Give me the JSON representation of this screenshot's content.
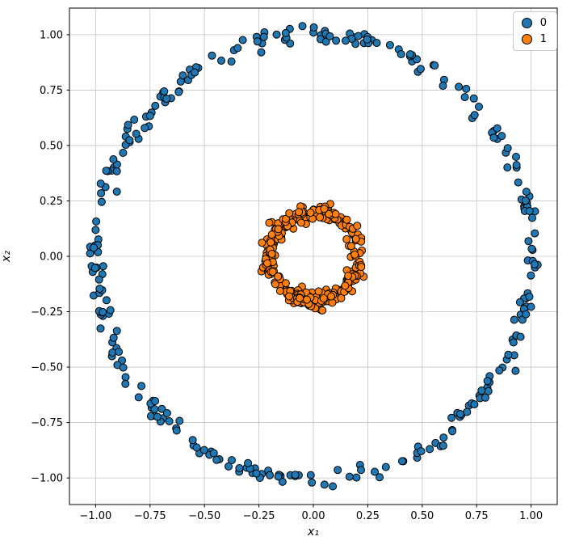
{
  "chart_data": {
    "type": "scatter",
    "title": "",
    "xlabel": "x₁",
    "ylabel": "x₂",
    "xlim": [
      -1.12,
      1.12
    ],
    "ylim": [
      -1.12,
      1.12
    ],
    "grid": true,
    "grid_color": "#c3c3c3",
    "background": "#ffffff",
    "legend_position": "upper right",
    "xticks": {
      "values": [
        -1.0,
        -0.75,
        -0.5,
        -0.25,
        0.0,
        0.25,
        0.5,
        0.75,
        1.0
      ],
      "labels": [
        "−1.00",
        "−0.75",
        "−0.50",
        "−0.25",
        "0.00",
        "0.25",
        "0.50",
        "0.75",
        "1.00"
      ]
    },
    "yticks": {
      "values": [
        -1.0,
        -0.75,
        -0.5,
        -0.25,
        0.0,
        0.25,
        0.5,
        0.75,
        1.0
      ],
      "labels": [
        "−1.00",
        "−0.75",
        "−0.50",
        "−0.25",
        "0.00",
        "0.25",
        "0.50",
        "0.75",
        "1.00"
      ]
    },
    "series": [
      {
        "name": "0",
        "color": "#1f77b4",
        "marker_edge": "#000000",
        "shape": "ring",
        "radius": 1.0,
        "noise_std": 0.02,
        "n_points": 300
      },
      {
        "name": "1",
        "color": "#ff7f0e",
        "marker_edge": "#000000",
        "shape": "ring",
        "radius": 0.2,
        "noise_std": 0.018,
        "n_points": 300
      }
    ]
  }
}
